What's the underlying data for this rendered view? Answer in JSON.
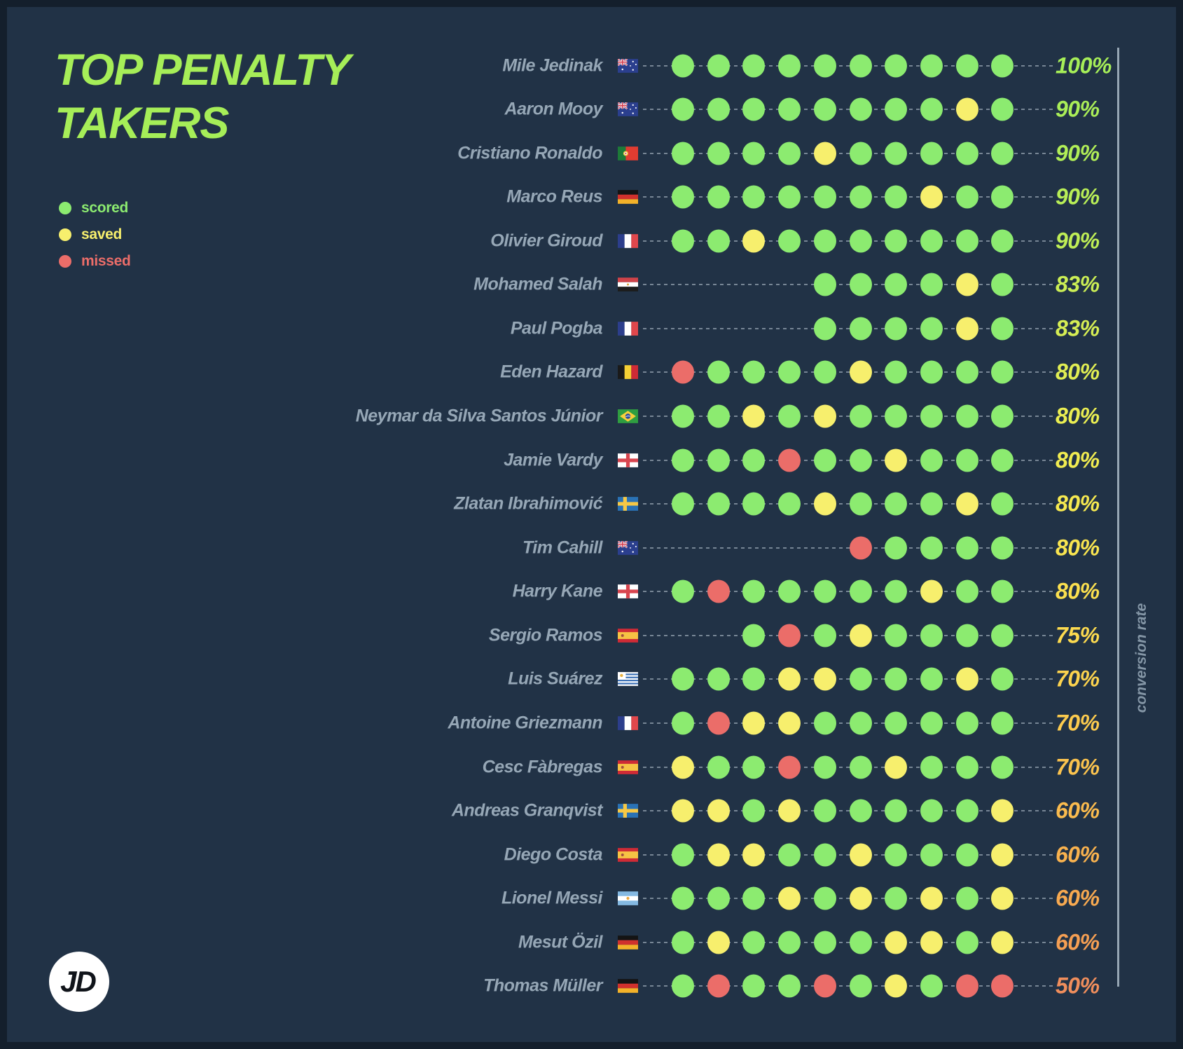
{
  "title": {
    "lines": [
      "TOP PENALTY",
      "TAKERS"
    ]
  },
  "legend": {
    "items": [
      {
        "label": "scored",
        "color": "#8ceb70"
      },
      {
        "label": "saved",
        "color": "#f7ef6d"
      },
      {
        "label": "missed",
        "color": "#eb6d69"
      }
    ]
  },
  "axis": {
    "label": "conversion rate"
  },
  "logo": {
    "text": "JD"
  },
  "colors": {
    "scored": "#8ceb70",
    "saved": "#f7ef6d",
    "missed": "#eb6d69",
    "background": "#213246",
    "frame": "#141f2c",
    "title": "#a6ee58",
    "player_name": "#96a7b6",
    "axis_line": "#96a6b4"
  },
  "chart_data": {
    "type": "table",
    "subtype": "penalty-outcome-dot-matrix",
    "title": "TOP PENALTY TAKERS",
    "legend_entries": [
      "scored",
      "saved",
      "missed"
    ],
    "axis_label": "conversion rate",
    "max_slots": 10,
    "slot_alignment": "right",
    "rows": [
      {
        "player": "Mile Jedinak",
        "country": "australia",
        "outcomes": [
          "scored",
          "scored",
          "scored",
          "scored",
          "scored",
          "scored",
          "scored",
          "scored",
          "scored",
          "scored"
        ],
        "attempts": 10,
        "scored": 10,
        "rate": "100%",
        "rate_value": 100,
        "rate_color": "#a6ee58"
      },
      {
        "player": "Aaron Mooy",
        "country": "australia",
        "outcomes": [
          "scored",
          "scored",
          "scored",
          "scored",
          "scored",
          "scored",
          "scored",
          "scored",
          "saved",
          "scored"
        ],
        "attempts": 10,
        "scored": 9,
        "rate": "90%",
        "rate_value": 90,
        "rate_color": "#aaee58"
      },
      {
        "player": "Cristiano Ronaldo",
        "country": "portugal",
        "outcomes": [
          "scored",
          "scored",
          "scored",
          "scored",
          "saved",
          "scored",
          "scored",
          "scored",
          "scored",
          "scored"
        ],
        "attempts": 10,
        "scored": 9,
        "rate": "90%",
        "rate_value": 90,
        "rate_color": "#b1ee57"
      },
      {
        "player": "Marco Reus",
        "country": "germany",
        "outcomes": [
          "scored",
          "scored",
          "scored",
          "scored",
          "scored",
          "scored",
          "scored",
          "saved",
          "scored",
          "scored"
        ],
        "attempts": 10,
        "scored": 9,
        "rate": "90%",
        "rate_value": 90,
        "rate_color": "#b8ee57"
      },
      {
        "player": "Olivier Giroud",
        "country": "france",
        "outcomes": [
          "scored",
          "scored",
          "saved",
          "scored",
          "scored",
          "scored",
          "scored",
          "scored",
          "scored",
          "scored"
        ],
        "attempts": 10,
        "scored": 9,
        "rate": "90%",
        "rate_value": 90,
        "rate_color": "#bfee56"
      },
      {
        "player": "Mohamed Salah",
        "country": "egypt",
        "outcomes": [
          "scored",
          "scored",
          "scored",
          "scored",
          "saved",
          "scored"
        ],
        "attempts": 6,
        "scored": 5,
        "rate": "83%",
        "rate_value": 83,
        "rate_color": "#cbee55"
      },
      {
        "player": "Paul Pogba",
        "country": "france",
        "outcomes": [
          "scored",
          "scored",
          "scored",
          "scored",
          "saved",
          "scored"
        ],
        "attempts": 6,
        "scored": 5,
        "rate": "83%",
        "rate_value": 83,
        "rate_color": "#d6ee54"
      },
      {
        "player": "Eden Hazard",
        "country": "belgium",
        "outcomes": [
          "missed",
          "scored",
          "scored",
          "scored",
          "scored",
          "saved",
          "scored",
          "scored",
          "scored",
          "scored"
        ],
        "attempts": 10,
        "scored": 8,
        "rate": "80%",
        "rate_value": 80,
        "rate_color": "#e1ee53"
      },
      {
        "player": "Neymar da Silva Santos Júnior",
        "country": "brazil",
        "outcomes": [
          "scored",
          "scored",
          "saved",
          "scored",
          "saved",
          "scored",
          "scored",
          "scored",
          "scored",
          "scored"
        ],
        "attempts": 10,
        "scored": 8,
        "rate": "80%",
        "rate_value": 80,
        "rate_color": "#eaee52"
      },
      {
        "player": "Jamie Vardy",
        "country": "england",
        "outcomes": [
          "scored",
          "scored",
          "scored",
          "missed",
          "scored",
          "scored",
          "saved",
          "scored",
          "scored",
          "scored"
        ],
        "attempts": 10,
        "scored": 8,
        "rate": "80%",
        "rate_value": 80,
        "rate_color": "#f1ec51"
      },
      {
        "player": "Zlatan Ibrahimović",
        "country": "sweden",
        "outcomes": [
          "scored",
          "scored",
          "scored",
          "scored",
          "saved",
          "scored",
          "scored",
          "scored",
          "saved",
          "scored"
        ],
        "attempts": 10,
        "scored": 8,
        "rate": "80%",
        "rate_value": 80,
        "rate_color": "#f6e950"
      },
      {
        "player": "Tim Cahill",
        "country": "australia",
        "outcomes": [
          "missed",
          "scored",
          "scored",
          "scored",
          "scored"
        ],
        "attempts": 5,
        "scored": 4,
        "rate": "80%",
        "rate_value": 80,
        "rate_color": "#f9e550"
      },
      {
        "player": "Harry Kane",
        "country": "england",
        "outcomes": [
          "scored",
          "missed",
          "scored",
          "scored",
          "scored",
          "scored",
          "scored",
          "saved",
          "scored",
          "scored"
        ],
        "attempts": 10,
        "scored": 8,
        "rate": "80%",
        "rate_value": 80,
        "rate_color": "#fbe04f"
      },
      {
        "player": "Sergio Ramos",
        "country": "spain",
        "outcomes": [
          "scored",
          "missed",
          "scored",
          "saved",
          "scored",
          "scored",
          "scored",
          "scored"
        ],
        "attempts": 8,
        "scored": 6,
        "rate": "75%",
        "rate_value": 75,
        "rate_color": "#fcda4f"
      },
      {
        "player": "Luis Suárez",
        "country": "uruguay",
        "outcomes": [
          "scored",
          "scored",
          "scored",
          "saved",
          "saved",
          "scored",
          "scored",
          "scored",
          "saved",
          "scored"
        ],
        "attempts": 10,
        "scored": 7,
        "rate": "70%",
        "rate_value": 70,
        "rate_color": "#fcd34e"
      },
      {
        "player": "Antoine Griezmann",
        "country": "france",
        "outcomes": [
          "scored",
          "missed",
          "saved",
          "saved",
          "scored",
          "scored",
          "scored",
          "scored",
          "scored",
          "scored"
        ],
        "attempts": 10,
        "scored": 7,
        "rate": "70%",
        "rate_value": 70,
        "rate_color": "#fccb4e"
      },
      {
        "player": "Cesc Fàbregas",
        "country": "spain",
        "outcomes": [
          "saved",
          "scored",
          "scored",
          "missed",
          "scored",
          "scored",
          "saved",
          "scored",
          "scored",
          "scored"
        ],
        "attempts": 10,
        "scored": 7,
        "rate": "70%",
        "rate_value": 70,
        "rate_color": "#fbc34e"
      },
      {
        "player": "Andreas Granqvist",
        "country": "sweden",
        "outcomes": [
          "saved",
          "saved",
          "scored",
          "saved",
          "scored",
          "scored",
          "scored",
          "scored",
          "scored",
          "saved"
        ],
        "attempts": 10,
        "scored": 6,
        "rate": "60%",
        "rate_value": 60,
        "rate_color": "#fabb4e"
      },
      {
        "player": "Diego Costa",
        "country": "spain",
        "outcomes": [
          "scored",
          "saved",
          "saved",
          "scored",
          "scored",
          "saved",
          "scored",
          "scored",
          "scored",
          "saved"
        ],
        "attempts": 10,
        "scored": 6,
        "rate": "60%",
        "rate_value": 60,
        "rate_color": "#f9b24e"
      },
      {
        "player": "Lionel Messi",
        "country": "argentina",
        "outcomes": [
          "scored",
          "scored",
          "scored",
          "saved",
          "scored",
          "saved",
          "scored",
          "saved",
          "scored",
          "saved"
        ],
        "attempts": 10,
        "scored": 6,
        "rate": "60%",
        "rate_value": 60,
        "rate_color": "#f7a950"
      },
      {
        "player": "Mesut Özil",
        "country": "germany",
        "outcomes": [
          "scored",
          "saved",
          "scored",
          "scored",
          "scored",
          "scored",
          "saved",
          "saved",
          "scored",
          "saved"
        ],
        "attempts": 10,
        "scored": 6,
        "rate": "60%",
        "rate_value": 60,
        "rate_color": "#f59f53"
      },
      {
        "player": "Thomas Müller",
        "country": "germany",
        "outcomes": [
          "scored",
          "missed",
          "scored",
          "scored",
          "missed",
          "scored",
          "saved",
          "scored",
          "missed",
          "missed"
        ],
        "attempts": 10,
        "scored": 5,
        "rate": "50%",
        "rate_value": 50,
        "rate_color": "#f08e5c"
      }
    ]
  }
}
